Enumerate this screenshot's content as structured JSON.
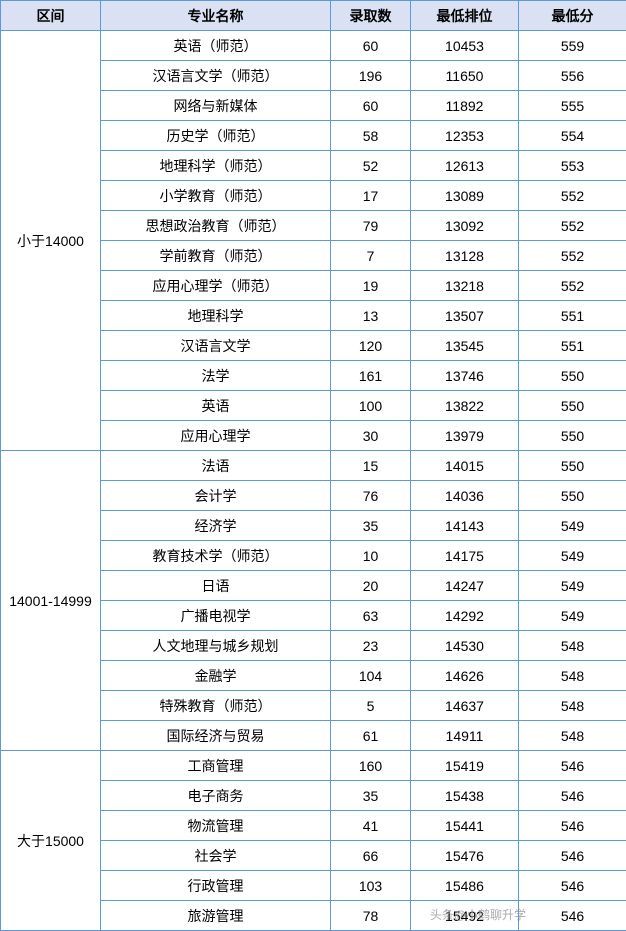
{
  "header_bg": "#d9e1f2",
  "border_color": "#5b9bd5",
  "columns": {
    "range": "区间",
    "major": "专业名称",
    "count": "录取数",
    "rank": "最低排位",
    "score": "最低分"
  },
  "groups": [
    {
      "range": "小于14000",
      "rows": [
        {
          "major": "英语（师范）",
          "count": "60",
          "rank": "10453",
          "score": "559"
        },
        {
          "major": "汉语言文学（师范）",
          "count": "196",
          "rank": "11650",
          "score": "556"
        },
        {
          "major": "网络与新媒体",
          "count": "60",
          "rank": "11892",
          "score": "555"
        },
        {
          "major": "历史学（师范）",
          "count": "58",
          "rank": "12353",
          "score": "554"
        },
        {
          "major": "地理科学（师范）",
          "count": "52",
          "rank": "12613",
          "score": "553"
        },
        {
          "major": "小学教育（师范）",
          "count": "17",
          "rank": "13089",
          "score": "552"
        },
        {
          "major": "思想政治教育（师范）",
          "count": "79",
          "rank": "13092",
          "score": "552"
        },
        {
          "major": "学前教育（师范）",
          "count": "7",
          "rank": "13128",
          "score": "552"
        },
        {
          "major": "应用心理学（师范）",
          "count": "19",
          "rank": "13218",
          "score": "552"
        },
        {
          "major": "地理科学",
          "count": "13",
          "rank": "13507",
          "score": "551"
        },
        {
          "major": "汉语言文学",
          "count": "120",
          "rank": "13545",
          "score": "551"
        },
        {
          "major": "法学",
          "count": "161",
          "rank": "13746",
          "score": "550"
        },
        {
          "major": "英语",
          "count": "100",
          "rank": "13822",
          "score": "550"
        },
        {
          "major": "应用心理学",
          "count": "30",
          "rank": "13979",
          "score": "550"
        }
      ]
    },
    {
      "range": "14001-14999",
      "rows": [
        {
          "major": "法语",
          "count": "15",
          "rank": "14015",
          "score": "550"
        },
        {
          "major": "会计学",
          "count": "76",
          "rank": "14036",
          "score": "550"
        },
        {
          "major": "经济学",
          "count": "35",
          "rank": "14143",
          "score": "549"
        },
        {
          "major": "教育技术学（师范）",
          "count": "10",
          "rank": "14175",
          "score": "549"
        },
        {
          "major": "日语",
          "count": "20",
          "rank": "14247",
          "score": "549"
        },
        {
          "major": "广播电视学",
          "count": "63",
          "rank": "14292",
          "score": "549"
        },
        {
          "major": "人文地理与城乡规划",
          "count": "23",
          "rank": "14530",
          "score": "548"
        },
        {
          "major": "金融学",
          "count": "104",
          "rank": "14626",
          "score": "548"
        },
        {
          "major": "特殊教育（师范）",
          "count": "5",
          "rank": "14637",
          "score": "548"
        },
        {
          "major": "国际经济与贸易",
          "count": "61",
          "rank": "14911",
          "score": "548"
        }
      ]
    },
    {
      "range": "大于15000",
      "rows": [
        {
          "major": "工商管理",
          "count": "160",
          "rank": "15419",
          "score": "546"
        },
        {
          "major": "电子商务",
          "count": "35",
          "rank": "15438",
          "score": "546"
        },
        {
          "major": "物流管理",
          "count": "41",
          "rank": "15441",
          "score": "546"
        },
        {
          "major": "社会学",
          "count": "66",
          "rank": "15476",
          "score": "546"
        },
        {
          "major": "行政管理",
          "count": "103",
          "rank": "15486",
          "score": "546"
        },
        {
          "major": "旅游管理",
          "count": "78",
          "rank": "15492",
          "score": "546"
        }
      ]
    }
  ],
  "watermark": "头条@小鹤聊升学"
}
